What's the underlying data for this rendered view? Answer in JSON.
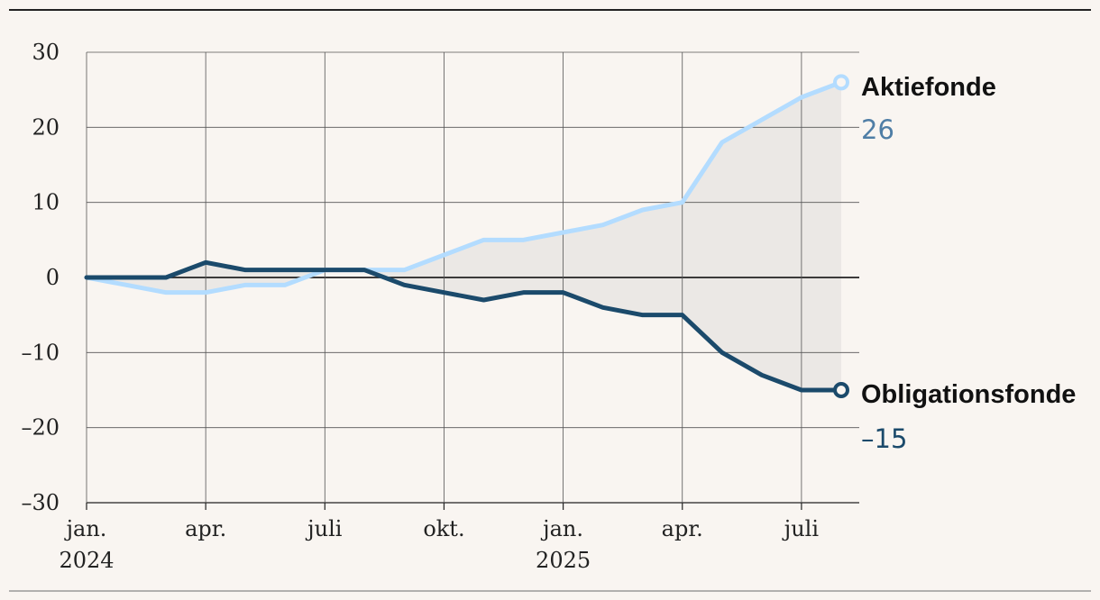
{
  "chart_data": {
    "type": "line",
    "x": [
      "2024-01",
      "2024-02",
      "2024-03",
      "2024-04",
      "2024-05",
      "2024-06",
      "2024-07",
      "2024-08",
      "2024-09",
      "2024-10",
      "2024-11",
      "2024-12",
      "2025-01",
      "2025-02",
      "2025-03",
      "2025-04",
      "2025-05",
      "2025-06",
      "2025-07",
      "2025-08"
    ],
    "series": [
      {
        "name": "Aktiefonde",
        "color": "#b3dcff",
        "values": [
          0,
          -1,
          -2,
          -2,
          -1,
          -1,
          1,
          1,
          1,
          3,
          5,
          5,
          6,
          7,
          9,
          10,
          18,
          21,
          24,
          26
        ],
        "end_label": "26"
      },
      {
        "name": "Obligationsfonde",
        "color": "#1b4a6b",
        "values": [
          0,
          0,
          0,
          2,
          1,
          1,
          1,
          1,
          -1,
          -2,
          -3,
          -2,
          -2,
          -4,
          -5,
          -5,
          -10,
          -13,
          -15,
          -15
        ],
        "end_label": "–15"
      }
    ],
    "ylim": [
      -30,
      30
    ],
    "yticks": [
      {
        "value": 30,
        "label": "30"
      },
      {
        "value": 20,
        "label": "20"
      },
      {
        "value": 10,
        "label": "10"
      },
      {
        "value": 0,
        "label": "0"
      },
      {
        "value": -10,
        "label": "–10"
      },
      {
        "value": -20,
        "label": "–20"
      },
      {
        "value": -30,
        "label": "–30"
      }
    ],
    "xticks": [
      {
        "index": 0,
        "label": "jan.",
        "sublabel": "2024"
      },
      {
        "index": 3,
        "label": "apr.",
        "sublabel": ""
      },
      {
        "index": 6,
        "label": "juli",
        "sublabel": ""
      },
      {
        "index": 9,
        "label": "okt.",
        "sublabel": ""
      },
      {
        "index": 12,
        "label": "jan.",
        "sublabel": "2025"
      },
      {
        "index": 15,
        "label": "apr.",
        "sublabel": ""
      },
      {
        "index": 18,
        "label": "juli",
        "sublabel": ""
      }
    ],
    "fill_between": true,
    "fill_color": "#ebe8e5",
    "grid": true,
    "legend": "end-of-line labels, right"
  }
}
